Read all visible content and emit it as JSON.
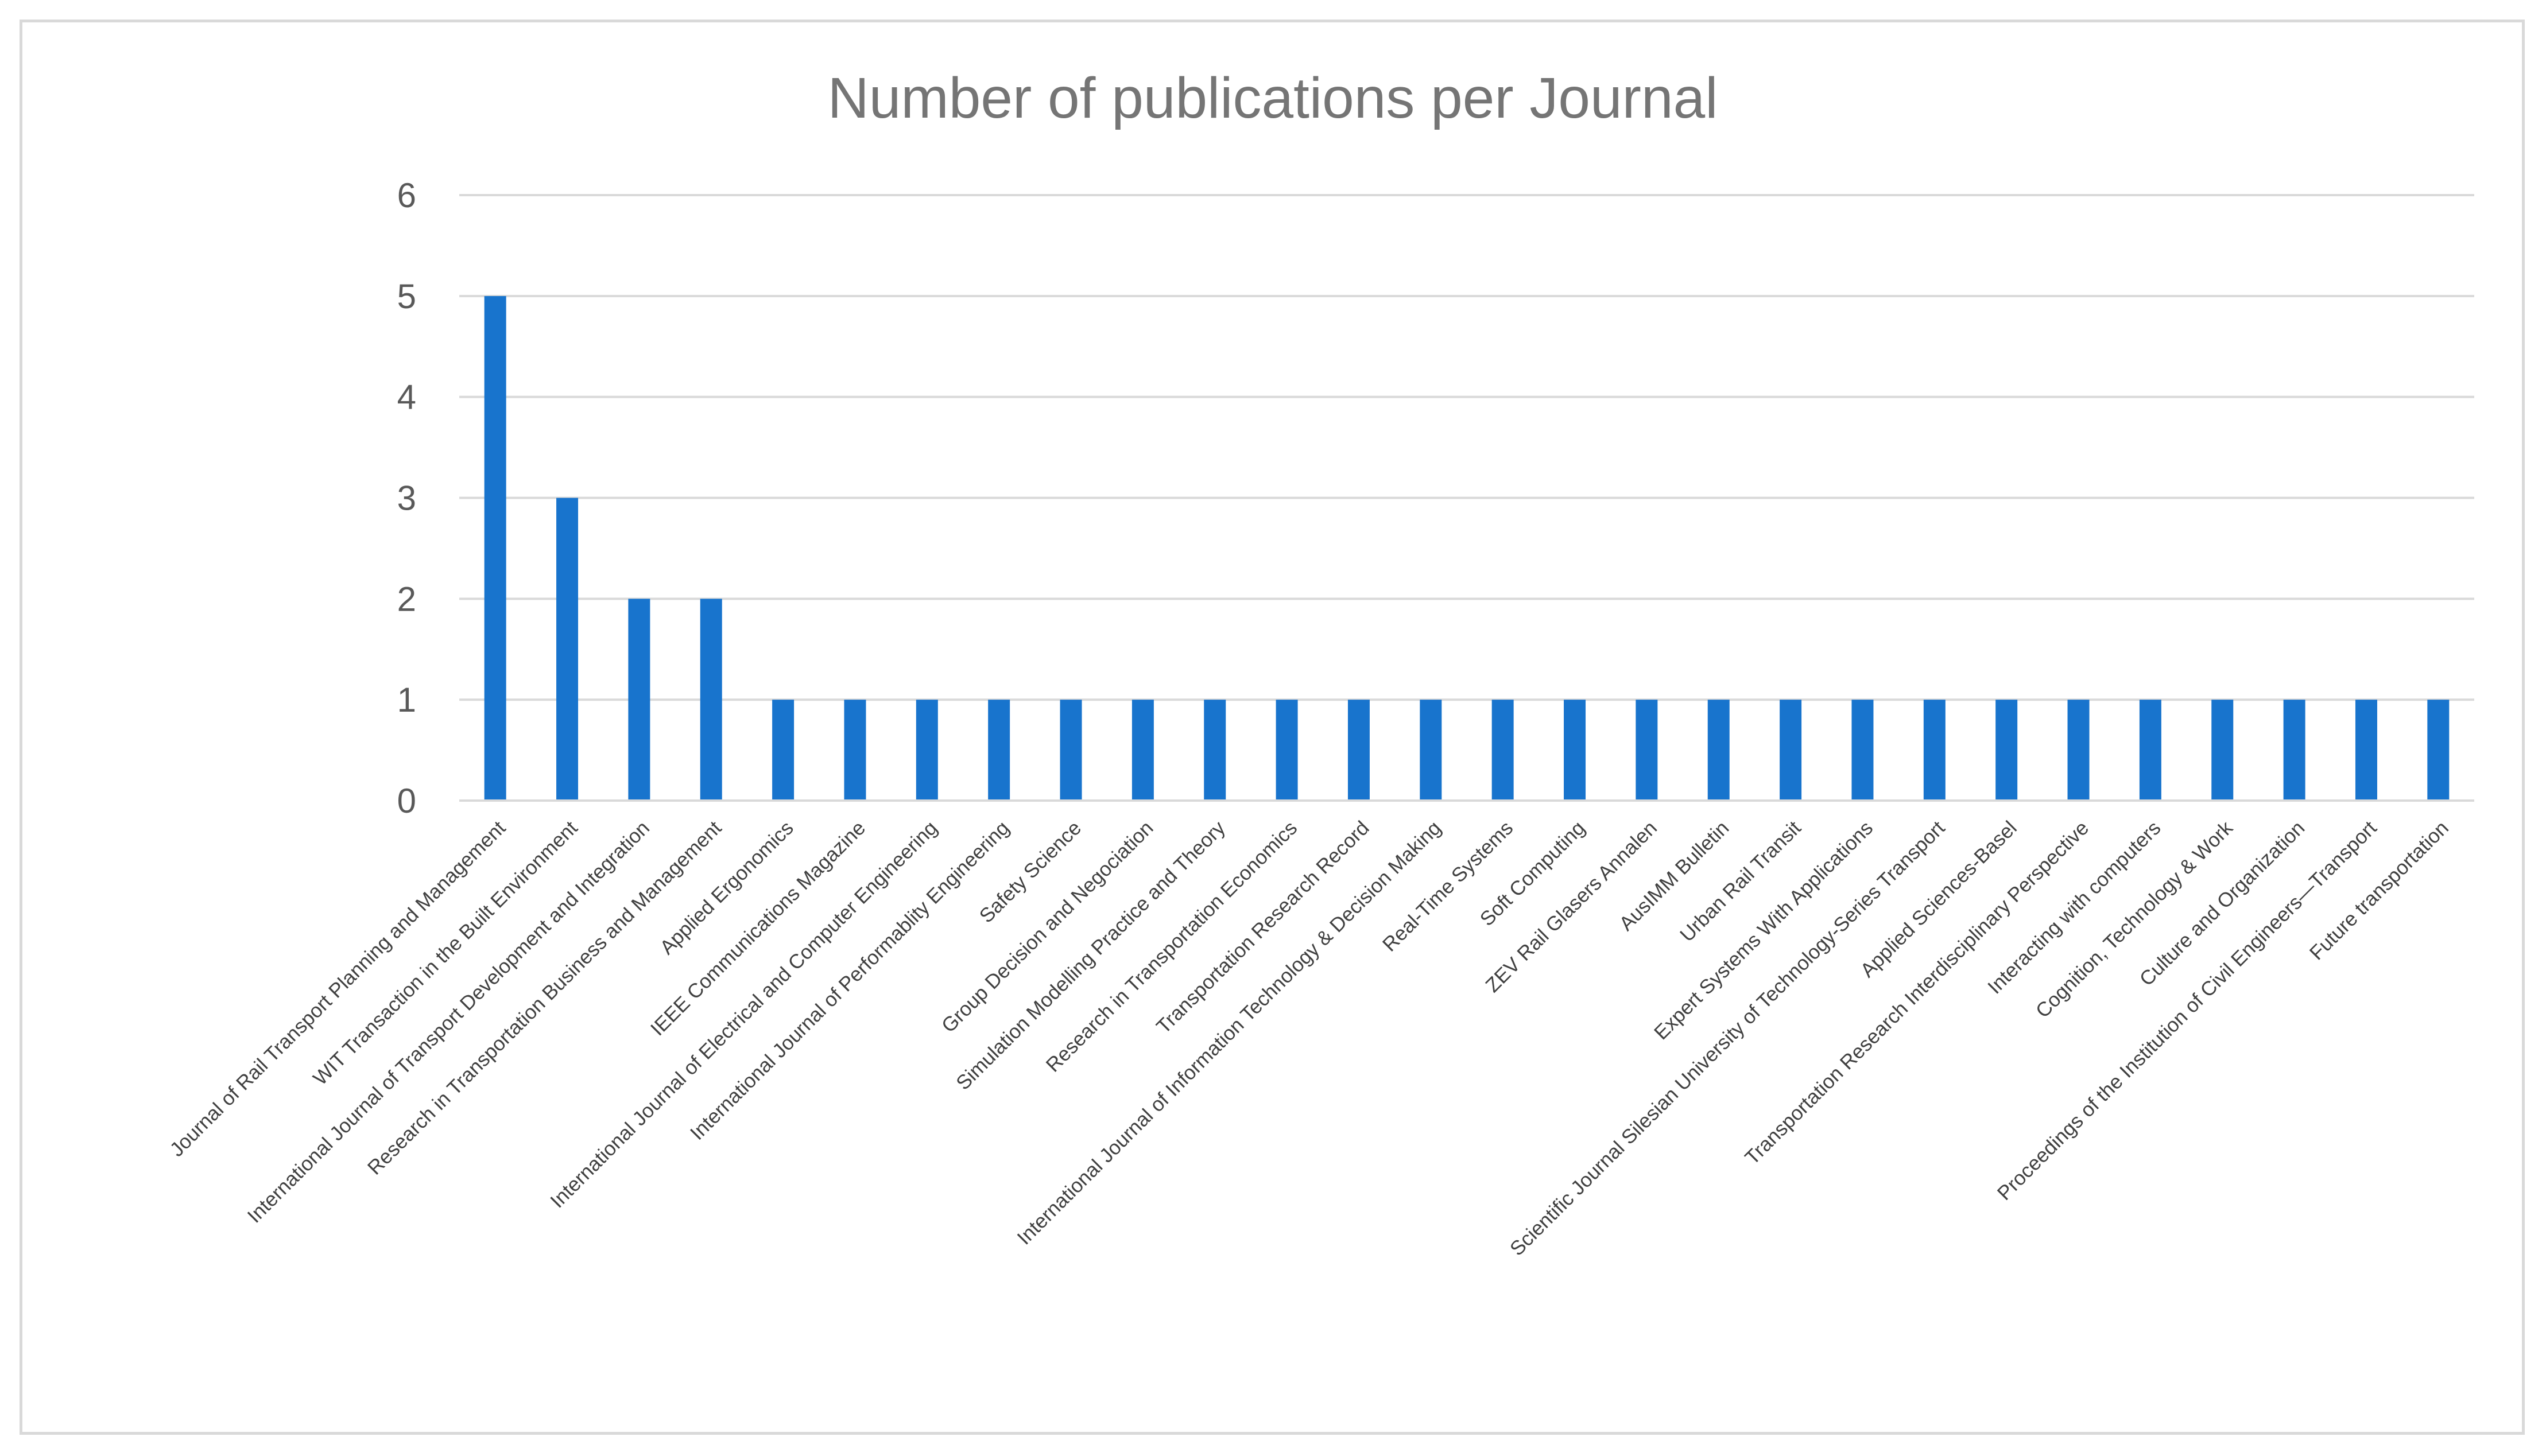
{
  "chart_data": {
    "type": "bar",
    "title": "Number of publications per Journal",
    "xlabel": "",
    "ylabel": "",
    "ylim": [
      0,
      6
    ],
    "yticks": [
      0,
      1,
      2,
      3,
      4,
      5,
      6
    ],
    "grid": true,
    "legend": "none",
    "bar_color": "#1874cd",
    "gridline_color": "#d9d9d9",
    "categories": [
      "Journal of Rail Transport Planning and Management",
      "WIT Transaction in the Built Environment",
      "International Journal of Transport Development and Integration",
      "Research in Transportation Business and Management",
      "Applied Ergonomics",
      "IEEE Communications Magazine",
      "International Journal of Electrical and Computer Engineering",
      "International Journal of Performablity Engineering",
      "Safety Science",
      "Group Decision and Negociation",
      "Simulation Modelling Practice and Theory",
      "Research in Transportation Economics",
      "Transportation Research Record",
      "International Journal of Information Technology & Decision Making",
      "Real-Time Systems",
      "Soft Computing",
      "ZEV Rail Glasers Annalen",
      "AusIMM Bulletin",
      "Urban Rail Transit",
      "Expert Systems With Applications",
      "Scientific Journal  Silesian University of Technology-Series Transport",
      "Applied Sciences-Basel",
      "Transportation Research Interdisciplinary Perspective",
      "Interacting with computers",
      "Cognition, Technology & Work",
      "Culture and Organization",
      "Proceedings of the Institution of Civil Engineers—Transport",
      "Future transportation"
    ],
    "values": [
      5,
      3,
      2,
      2,
      1,
      1,
      1,
      1,
      1,
      1,
      1,
      1,
      1,
      1,
      1,
      1,
      1,
      1,
      1,
      1,
      1,
      1,
      1,
      1,
      1,
      1,
      1,
      1
    ]
  }
}
